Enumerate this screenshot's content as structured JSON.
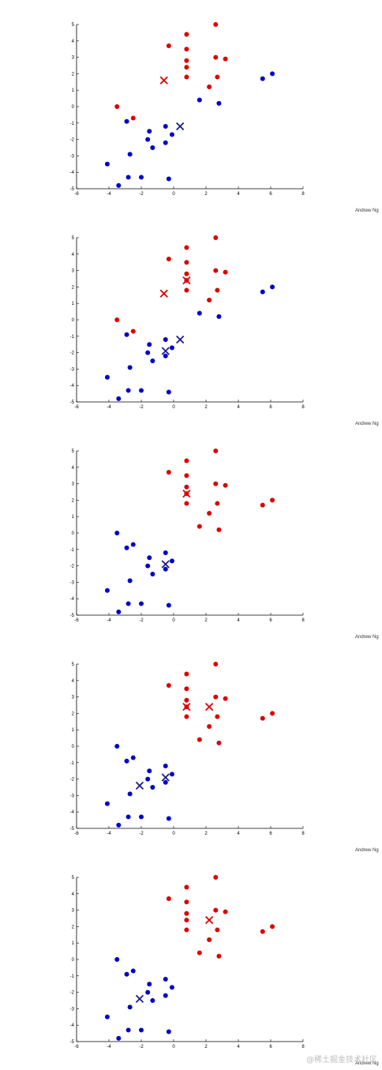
{
  "chart_data": [
    {
      "type": "scatter",
      "credit": "Andrew Ng",
      "xlim": [
        -6,
        8
      ],
      "ylim": [
        -5,
        5
      ],
      "xticks": [
        -6,
        -4,
        -2,
        0,
        2,
        4,
        6,
        8
      ],
      "yticks": [
        -5,
        -4,
        -3,
        -2,
        -1,
        0,
        1,
        2,
        3,
        4,
        5
      ],
      "series": [
        {
          "color": "#dd0000",
          "marker": "dot",
          "points": [
            [
              2.6,
              5.0
            ],
            [
              0.8,
              4.4
            ],
            [
              -0.3,
              3.7
            ],
            [
              0.8,
              3.5
            ],
            [
              2.6,
              3.0
            ],
            [
              3.2,
              2.9
            ],
            [
              0.8,
              2.8
            ],
            [
              0.8,
              2.4
            ],
            [
              2.7,
              1.8
            ],
            [
              0.8,
              1.8
            ],
            [
              2.2,
              1.2
            ],
            [
              -3.5,
              0.0
            ],
            [
              -2.5,
              -0.7
            ]
          ]
        },
        {
          "color": "#0000cc",
          "marker": "dot",
          "points": [
            [
              1.6,
              0.4
            ],
            [
              2.8,
              0.2
            ],
            [
              5.5,
              1.7
            ],
            [
              6.1,
              2.0
            ],
            [
              -2.9,
              -0.9
            ],
            [
              -1.5,
              -1.5
            ],
            [
              -0.5,
              -1.2
            ],
            [
              -0.1,
              -1.7
            ],
            [
              -1.6,
              -2.0
            ],
            [
              -0.5,
              -2.2
            ],
            [
              -1.3,
              -2.5
            ],
            [
              -2.7,
              -2.9
            ],
            [
              -4.1,
              -3.5
            ],
            [
              -2.8,
              -4.3
            ],
            [
              -2.0,
              -4.3
            ],
            [
              -3.4,
              -4.8
            ],
            [
              -0.3,
              -4.4
            ]
          ]
        }
      ],
      "centroids": [
        {
          "color": "#dd0000",
          "points": [
            [
              -0.6,
              1.6
            ]
          ]
        },
        {
          "color": "#1a1a99",
          "points": [
            [
              0.4,
              -1.2
            ]
          ]
        }
      ]
    },
    {
      "type": "scatter",
      "credit": "Andrew Ng",
      "xlim": [
        -6,
        8
      ],
      "ylim": [
        -5,
        5
      ],
      "xticks": [
        -6,
        -4,
        -2,
        0,
        2,
        4,
        6,
        8
      ],
      "yticks": [
        -5,
        -4,
        -3,
        -2,
        -1,
        0,
        1,
        2,
        3,
        4,
        5
      ],
      "series": [
        {
          "color": "#dd0000",
          "marker": "dot",
          "points": [
            [
              2.6,
              5.0
            ],
            [
              0.8,
              4.4
            ],
            [
              -0.3,
              3.7
            ],
            [
              0.8,
              3.5
            ],
            [
              2.6,
              3.0
            ],
            [
              3.2,
              2.9
            ],
            [
              0.8,
              2.8
            ],
            [
              0.8,
              2.4
            ],
            [
              2.7,
              1.8
            ],
            [
              0.8,
              1.8
            ],
            [
              2.2,
              1.2
            ],
            [
              -3.5,
              0.0
            ],
            [
              -2.5,
              -0.7
            ]
          ]
        },
        {
          "color": "#0000cc",
          "marker": "dot",
          "points": [
            [
              1.6,
              0.4
            ],
            [
              2.8,
              0.2
            ],
            [
              5.5,
              1.7
            ],
            [
              6.1,
              2.0
            ],
            [
              -2.9,
              -0.9
            ],
            [
              -1.5,
              -1.5
            ],
            [
              -0.5,
              -1.2
            ],
            [
              -0.1,
              -1.7
            ],
            [
              -1.6,
              -2.0
            ],
            [
              -0.5,
              -2.2
            ],
            [
              -1.3,
              -2.5
            ],
            [
              -2.7,
              -2.9
            ],
            [
              -4.1,
              -3.5
            ],
            [
              -2.8,
              -4.3
            ],
            [
              -2.0,
              -4.3
            ],
            [
              -3.4,
              -4.8
            ],
            [
              -0.3,
              -4.4
            ]
          ]
        }
      ],
      "centroids": [
        {
          "color": "#dd0000",
          "points": [
            [
              -0.6,
              1.6
            ],
            [
              0.8,
              2.4
            ]
          ]
        },
        {
          "color": "#1a1a99",
          "points": [
            [
              0.4,
              -1.2
            ],
            [
              -0.5,
              -1.9
            ]
          ]
        }
      ]
    },
    {
      "type": "scatter",
      "credit": "Andrew Ng",
      "xlim": [
        -6,
        8
      ],
      "ylim": [
        -5,
        5
      ],
      "xticks": [
        -6,
        -4,
        -2,
        0,
        2,
        4,
        6,
        8
      ],
      "yticks": [
        -5,
        -4,
        -3,
        -2,
        -1,
        0,
        1,
        2,
        3,
        4,
        5
      ],
      "series": [
        {
          "color": "#dd0000",
          "marker": "dot",
          "points": [
            [
              2.6,
              5.0
            ],
            [
              0.8,
              4.4
            ],
            [
              -0.3,
              3.7
            ],
            [
              0.8,
              3.5
            ],
            [
              2.6,
              3.0
            ],
            [
              3.2,
              2.9
            ],
            [
              0.8,
              2.8
            ],
            [
              0.8,
              2.4
            ],
            [
              2.7,
              1.8
            ],
            [
              0.8,
              1.8
            ],
            [
              2.2,
              1.2
            ],
            [
              1.6,
              0.4
            ],
            [
              2.8,
              0.2
            ],
            [
              5.5,
              1.7
            ],
            [
              6.1,
              2.0
            ]
          ]
        },
        {
          "color": "#0000cc",
          "marker": "dot",
          "points": [
            [
              -3.5,
              0.0
            ],
            [
              -2.5,
              -0.7
            ],
            [
              -2.9,
              -0.9
            ],
            [
              -1.5,
              -1.5
            ],
            [
              -0.5,
              -1.2
            ],
            [
              -0.1,
              -1.7
            ],
            [
              -1.6,
              -2.0
            ],
            [
              -0.5,
              -2.2
            ],
            [
              -1.3,
              -2.5
            ],
            [
              -2.7,
              -2.9
            ],
            [
              -4.1,
              -3.5
            ],
            [
              -2.8,
              -4.3
            ],
            [
              -2.0,
              -4.3
            ],
            [
              -3.4,
              -4.8
            ],
            [
              -0.3,
              -4.4
            ]
          ]
        }
      ],
      "centroids": [
        {
          "color": "#dd0000",
          "points": [
            [
              0.8,
              2.4
            ]
          ]
        },
        {
          "color": "#1a1a99",
          "points": [
            [
              -0.5,
              -1.9
            ]
          ]
        }
      ]
    },
    {
      "type": "scatter",
      "credit": "Andrew Ng",
      "xlim": [
        -6,
        8
      ],
      "ylim": [
        -5,
        5
      ],
      "xticks": [
        -6,
        -4,
        -2,
        0,
        2,
        4,
        6,
        8
      ],
      "yticks": [
        -5,
        -4,
        -3,
        -2,
        -1,
        0,
        1,
        2,
        3,
        4,
        5
      ],
      "series": [
        {
          "color": "#dd0000",
          "marker": "dot",
          "points": [
            [
              2.6,
              5.0
            ],
            [
              0.8,
              4.4
            ],
            [
              -0.3,
              3.7
            ],
            [
              0.8,
              3.5
            ],
            [
              2.6,
              3.0
            ],
            [
              3.2,
              2.9
            ],
            [
              0.8,
              2.8
            ],
            [
              0.8,
              2.4
            ],
            [
              2.7,
              1.8
            ],
            [
              0.8,
              1.8
            ],
            [
              2.2,
              1.2
            ],
            [
              1.6,
              0.4
            ],
            [
              2.8,
              0.2
            ],
            [
              5.5,
              1.7
            ],
            [
              6.1,
              2.0
            ]
          ]
        },
        {
          "color": "#0000cc",
          "marker": "dot",
          "points": [
            [
              -3.5,
              0.0
            ],
            [
              -2.5,
              -0.7
            ],
            [
              -2.9,
              -0.9
            ],
            [
              -1.5,
              -1.5
            ],
            [
              -0.5,
              -1.2
            ],
            [
              -0.1,
              -1.7
            ],
            [
              -1.6,
              -2.0
            ],
            [
              -0.5,
              -2.2
            ],
            [
              -1.3,
              -2.5
            ],
            [
              -2.7,
              -2.9
            ],
            [
              -4.1,
              -3.5
            ],
            [
              -2.8,
              -4.3
            ],
            [
              -2.0,
              -4.3
            ],
            [
              -3.4,
              -4.8
            ],
            [
              -0.3,
              -4.4
            ]
          ]
        }
      ],
      "centroids": [
        {
          "color": "#dd0000",
          "points": [
            [
              0.8,
              2.4
            ],
            [
              2.2,
              2.4
            ]
          ]
        },
        {
          "color": "#1a1a99",
          "points": [
            [
              -0.5,
              -1.9
            ],
            [
              -2.1,
              -2.4
            ]
          ]
        }
      ]
    },
    {
      "type": "scatter",
      "credit": "Andrew Ng",
      "xlim": [
        -6,
        8
      ],
      "ylim": [
        -5,
        5
      ],
      "xticks": [
        -6,
        -4,
        -2,
        0,
        2,
        4,
        6,
        8
      ],
      "yticks": [
        -5,
        -4,
        -3,
        -2,
        -1,
        0,
        1,
        2,
        3,
        4,
        5
      ],
      "series": [
        {
          "color": "#dd0000",
          "marker": "dot",
          "points": [
            [
              2.6,
              5.0
            ],
            [
              0.8,
              4.4
            ],
            [
              -0.3,
              3.7
            ],
            [
              0.8,
              3.5
            ],
            [
              2.6,
              3.0
            ],
            [
              3.2,
              2.9
            ],
            [
              0.8,
              2.8
            ],
            [
              0.8,
              2.4
            ],
            [
              2.7,
              1.8
            ],
            [
              0.8,
              1.8
            ],
            [
              2.2,
              1.2
            ],
            [
              1.6,
              0.4
            ],
            [
              2.8,
              0.2
            ],
            [
              5.5,
              1.7
            ],
            [
              6.1,
              2.0
            ]
          ]
        },
        {
          "color": "#0000cc",
          "marker": "dot",
          "points": [
            [
              -3.5,
              0.0
            ],
            [
              -2.5,
              -0.7
            ],
            [
              -2.9,
              -0.9
            ],
            [
              -1.5,
              -1.5
            ],
            [
              -0.5,
              -1.2
            ],
            [
              -0.1,
              -1.7
            ],
            [
              -1.6,
              -2.0
            ],
            [
              -0.5,
              -2.2
            ],
            [
              -1.3,
              -2.5
            ],
            [
              -2.7,
              -2.9
            ],
            [
              -4.1,
              -3.5
            ],
            [
              -2.8,
              -4.3
            ],
            [
              -2.0,
              -4.3
            ],
            [
              -3.4,
              -4.8
            ],
            [
              -0.3,
              -4.4
            ]
          ]
        }
      ],
      "centroids": [
        {
          "color": "#dd0000",
          "points": [
            [
              2.2,
              2.4
            ]
          ]
        },
        {
          "color": "#1a1a99",
          "points": [
            [
              -2.1,
              -2.4
            ]
          ]
        }
      ]
    }
  ],
  "watermark": "@稀土掘金技术社区"
}
